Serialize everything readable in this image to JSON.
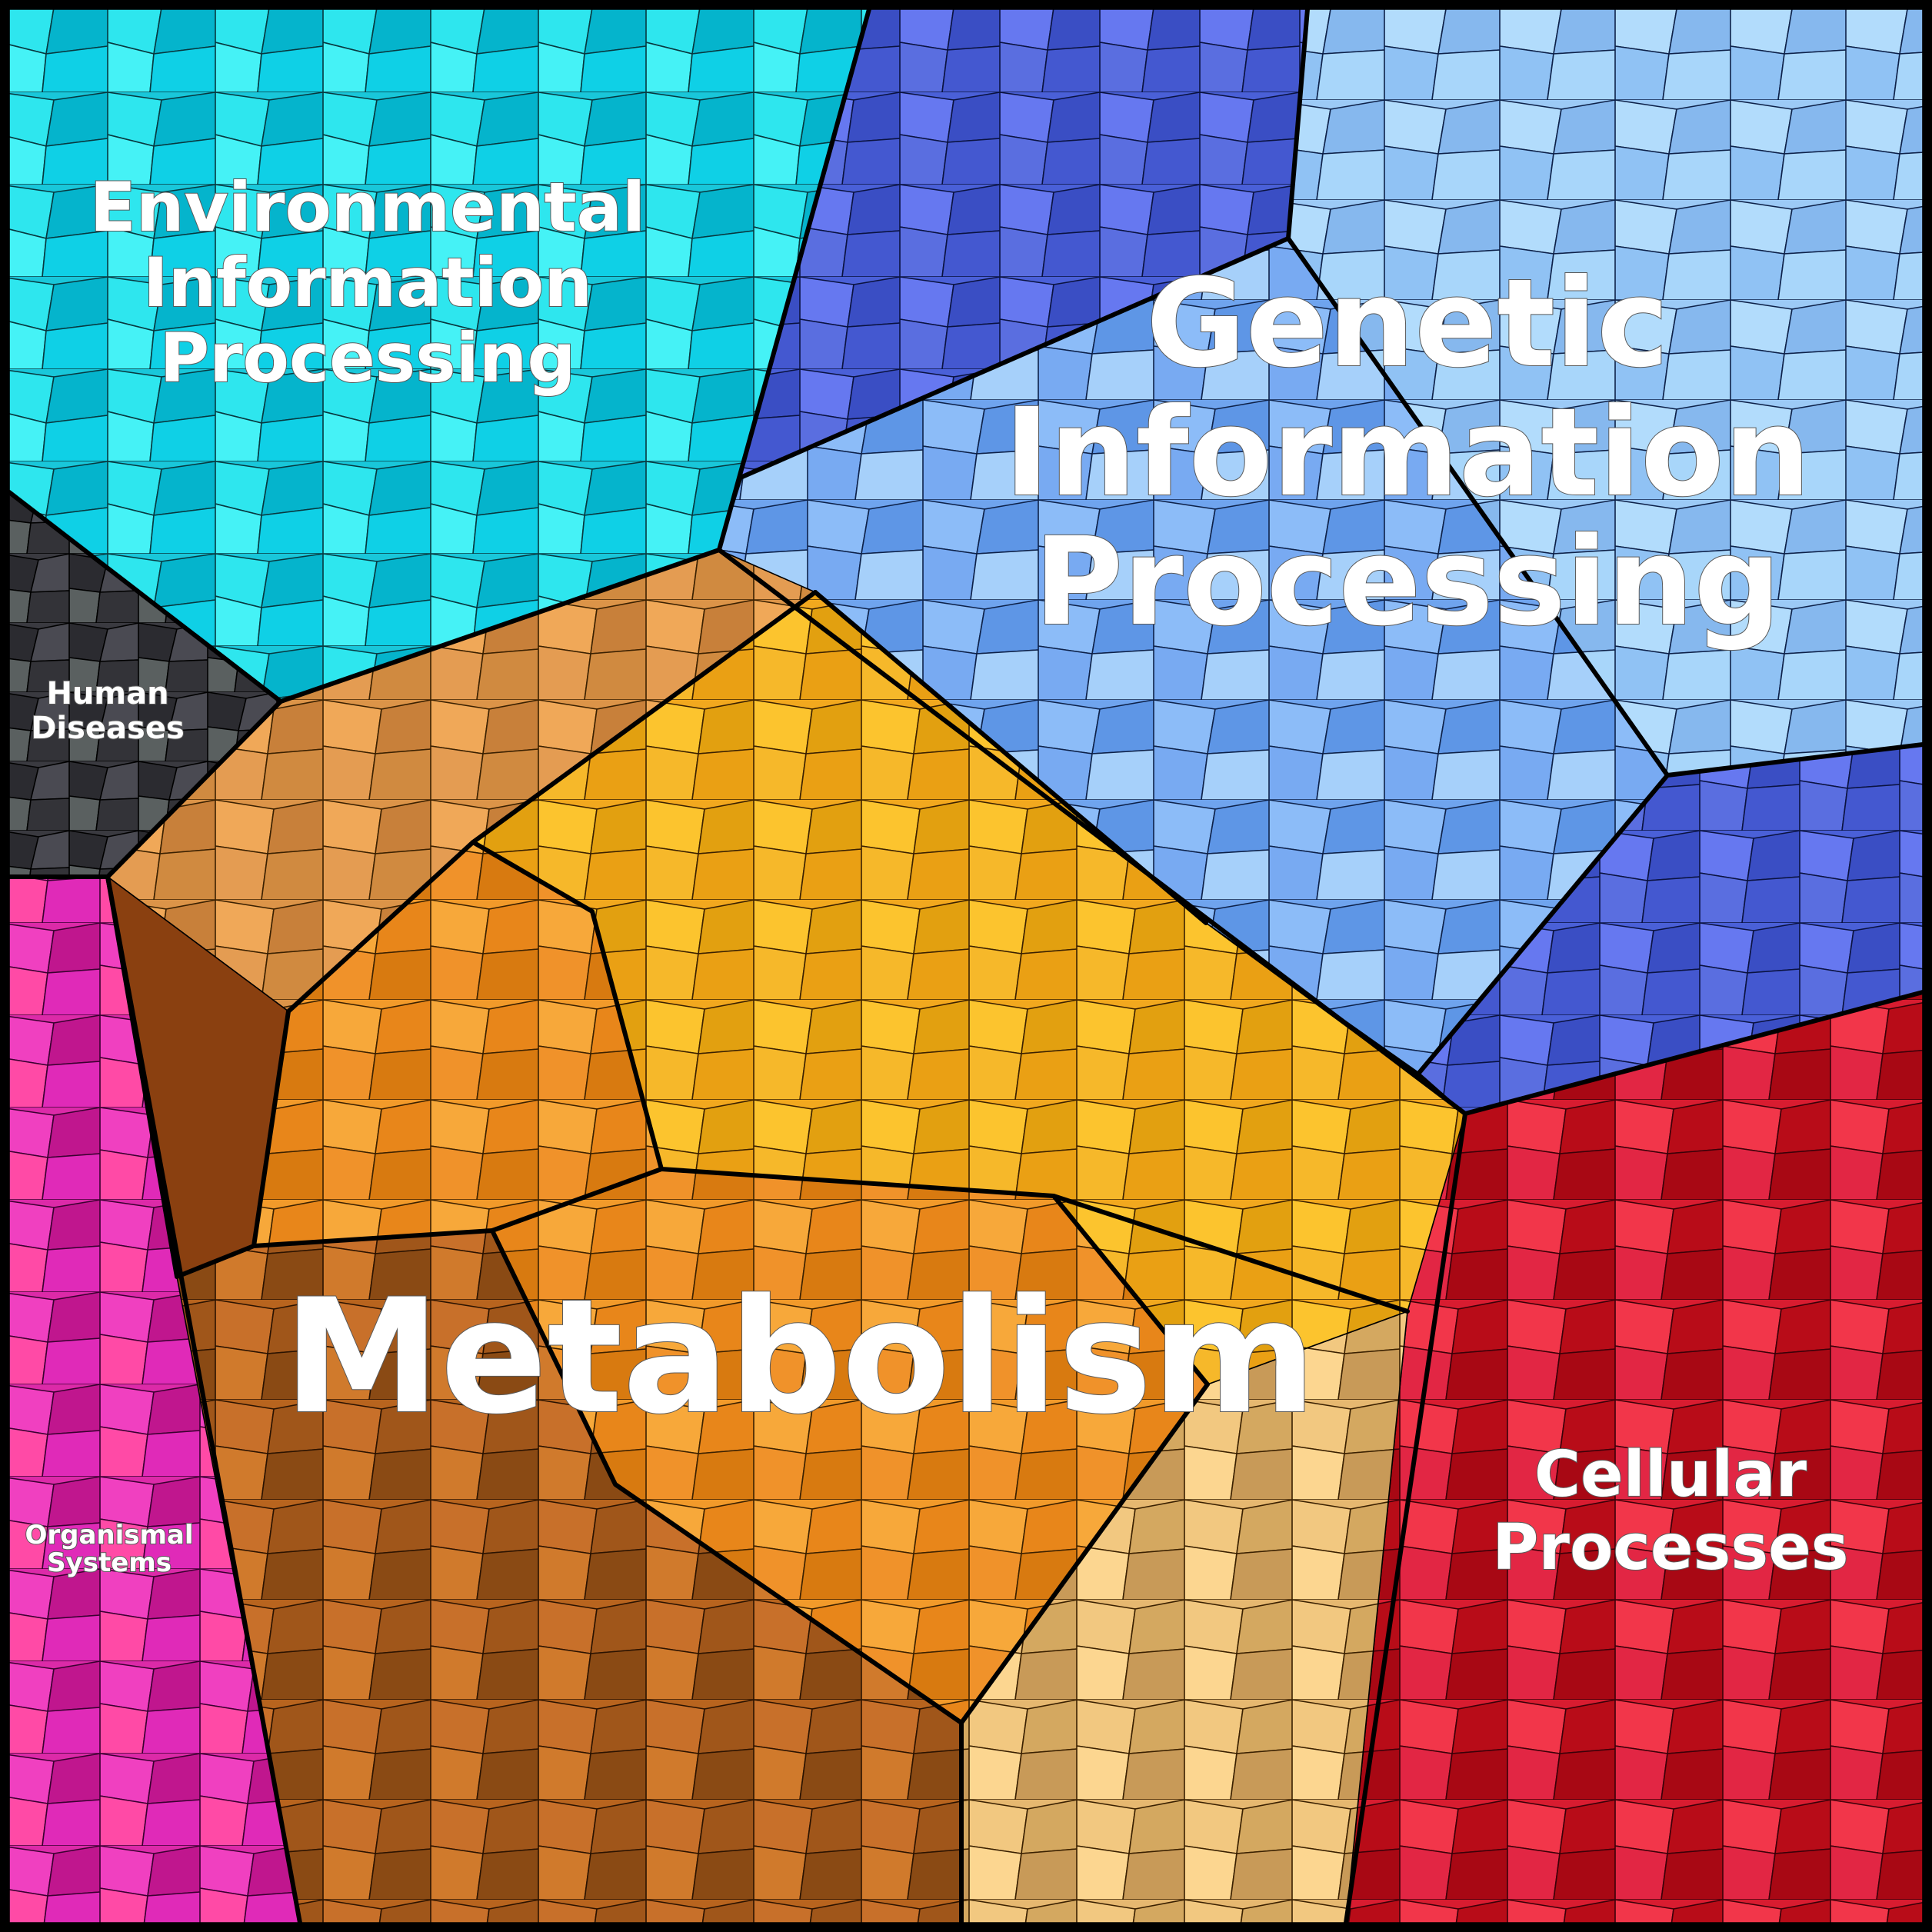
{
  "diagram": {
    "type": "voronoi-treemap",
    "categories": [
      {
        "key": "environmental",
        "label_lines": [
          "Environmental",
          "Information",
          "Processing"
        ],
        "color": "#1fc8dc"
      },
      {
        "key": "genetic",
        "label_lines": [
          "Genetic",
          "Information",
          "Processing"
        ],
        "color": "#6a8cf0"
      },
      {
        "key": "human",
        "label_lines": [
          "Human",
          "Diseases"
        ],
        "color": "#3f3f46"
      },
      {
        "key": "metabolism",
        "label_lines": [
          "Metabolism"
        ],
        "color": "#f0a020"
      },
      {
        "key": "organismal",
        "label_lines": [
          "Organismal",
          "Systems"
        ],
        "color": "#e030b0"
      },
      {
        "key": "cellular",
        "label_lines": [
          "Cellular",
          "Processes"
        ],
        "color": "#d8203c"
      }
    ]
  }
}
